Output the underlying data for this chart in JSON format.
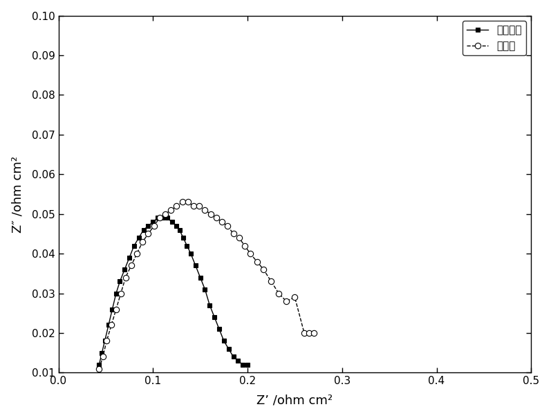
{
  "xlabel": "Z’ /ohm cm²",
  "ylabel": "Z″ /ohm cm²",
  "xlim": [
    0.0,
    0.5
  ],
  "ylim": [
    0.01,
    0.1
  ],
  "xticks": [
    0.0,
    0.1,
    0.2,
    0.3,
    0.4,
    0.5
  ],
  "yticks": [
    0.01,
    0.02,
    0.03,
    0.04,
    0.05,
    0.06,
    0.07,
    0.08,
    0.09,
    0.1
  ],
  "series1_label": "过渡层法",
  "series2_label": "常规法",
  "series1_x": [
    0.043,
    0.046,
    0.049,
    0.053,
    0.057,
    0.061,
    0.065,
    0.07,
    0.075,
    0.08,
    0.085,
    0.09,
    0.095,
    0.1,
    0.105,
    0.11,
    0.115,
    0.12,
    0.125,
    0.128,
    0.132,
    0.136,
    0.14,
    0.145,
    0.15,
    0.155,
    0.16,
    0.165,
    0.17,
    0.175,
    0.18,
    0.185,
    0.19,
    0.195,
    0.2
  ],
  "series1_y": [
    0.012,
    0.015,
    0.018,
    0.022,
    0.026,
    0.03,
    0.033,
    0.036,
    0.039,
    0.042,
    0.044,
    0.046,
    0.047,
    0.048,
    0.049,
    0.049,
    0.049,
    0.048,
    0.047,
    0.046,
    0.044,
    0.042,
    0.04,
    0.037,
    0.034,
    0.031,
    0.027,
    0.024,
    0.021,
    0.018,
    0.016,
    0.014,
    0.013,
    0.012,
    0.012
  ],
  "series2_x": [
    0.043,
    0.047,
    0.051,
    0.056,
    0.061,
    0.066,
    0.071,
    0.077,
    0.083,
    0.089,
    0.095,
    0.101,
    0.107,
    0.113,
    0.119,
    0.125,
    0.131,
    0.137,
    0.143,
    0.149,
    0.155,
    0.161,
    0.167,
    0.173,
    0.179,
    0.185,
    0.191,
    0.197,
    0.203,
    0.21,
    0.217,
    0.225,
    0.233,
    0.241,
    0.25,
    0.26,
    0.265,
    0.27
  ],
  "series2_y": [
    0.011,
    0.014,
    0.018,
    0.022,
    0.026,
    0.03,
    0.034,
    0.037,
    0.04,
    0.043,
    0.045,
    0.047,
    0.049,
    0.05,
    0.051,
    0.052,
    0.053,
    0.053,
    0.052,
    0.052,
    0.051,
    0.05,
    0.049,
    0.048,
    0.047,
    0.045,
    0.044,
    0.042,
    0.04,
    0.038,
    0.036,
    0.033,
    0.03,
    0.028,
    0.029,
    0.02,
    0.02,
    0.02
  ],
  "background_color": "#ffffff",
  "linewidth": 1.0,
  "markersize1": 5,
  "markersize2": 6,
  "fontsize_tick": 11,
  "fontsize_label": 13,
  "fontsize_legend": 11
}
